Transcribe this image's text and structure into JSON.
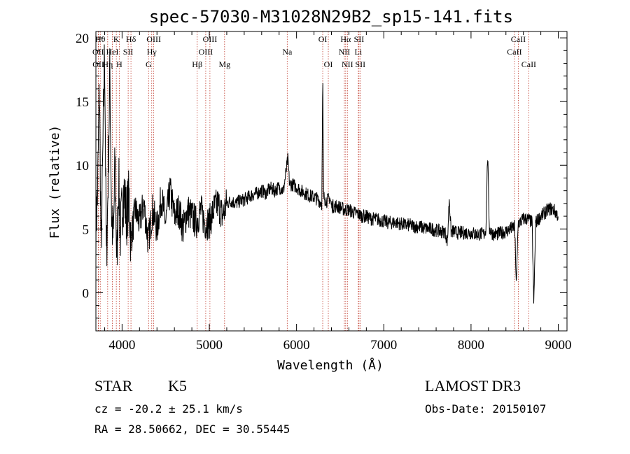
{
  "chart_data": {
    "type": "line",
    "title": "spec-57030-M31028N29B2_sp15-141.fits",
    "xlabel": "Wavelength (Å)",
    "ylabel": "Flux (relative)",
    "xlim": [
      3700,
      9100
    ],
    "ylim": [
      -3,
      20.5
    ],
    "xticks": [
      4000,
      5000,
      6000,
      7000,
      8000,
      9000
    ],
    "yticks": [
      0,
      5,
      10,
      15,
      20
    ],
    "colors": {
      "spectrum": "#000000",
      "lines": "#c0392b"
    },
    "spectral_lines": [
      {
        "label": "Hθ",
        "x": 3750,
        "row": 0
      },
      {
        "label": "OII",
        "x": 3727,
        "row": 1
      },
      {
        "label": "OII",
        "x": 3729,
        "row": 2
      },
      {
        "label": "Hη",
        "x": 3835,
        "row": 2
      },
      {
        "label": "HeI",
        "x": 3889,
        "row": 1
      },
      {
        "label": "K",
        "x": 3934,
        "row": 0
      },
      {
        "label": "H",
        "x": 3968,
        "row": 2
      },
      {
        "label": "SII",
        "x": 4070,
        "row": 1
      },
      {
        "label": "Hδ",
        "x": 4102,
        "row": 0
      },
      {
        "label": "G",
        "x": 4304,
        "row": 2
      },
      {
        "label": "Hγ",
        "x": 4340,
        "row": 1
      },
      {
        "label": "OIII",
        "x": 4363,
        "row": 0
      },
      {
        "label": "Hβ",
        "x": 4861,
        "row": 2
      },
      {
        "label": "OIII",
        "x": 4959,
        "row": 1
      },
      {
        "label": "OIII",
        "x": 5007,
        "row": 0
      },
      {
        "label": "Mg",
        "x": 5175,
        "row": 2
      },
      {
        "label": "Na",
        "x": 5893,
        "row": 1
      },
      {
        "label": "OI",
        "x": 6300,
        "row": 0
      },
      {
        "label": "OI",
        "x": 6364,
        "row": 2
      },
      {
        "label": "NII",
        "x": 6548,
        "row": 1
      },
      {
        "label": "Hα",
        "x": 6563,
        "row": 0
      },
      {
        "label": "NII",
        "x": 6583,
        "row": 2
      },
      {
        "label": "Li",
        "x": 6708,
        "row": 1
      },
      {
        "label": "SII",
        "x": 6716,
        "row": 0
      },
      {
        "label": "SII",
        "x": 6731,
        "row": 2
      },
      {
        "label": "CaII",
        "x": 8498,
        "row": 1
      },
      {
        "label": "CaII",
        "x": 8542,
        "row": 0
      },
      {
        "label": "CaII",
        "x": 8662,
        "row": 2
      }
    ],
    "spectrum_anchors": [
      [
        3700,
        5.0
      ],
      [
        3720,
        8.0
      ],
      [
        3740,
        16.5
      ],
      [
        3760,
        3.0
      ],
      [
        3780,
        11.0
      ],
      [
        3800,
        19.5
      ],
      [
        3820,
        2.5
      ],
      [
        3840,
        8.5
      ],
      [
        3860,
        17.5
      ],
      [
        3880,
        6.0
      ],
      [
        3900,
        4.0
      ],
      [
        3920,
        10.5
      ],
      [
        3940,
        2.0
      ],
      [
        3960,
        9.0
      ],
      [
        3980,
        4.5
      ],
      [
        4000,
        6.5
      ],
      [
        4020,
        8.0
      ],
      [
        4050,
        6.0
      ],
      [
        4080,
        7.5
      ],
      [
        4100,
        4.0
      ],
      [
        4150,
        6.5
      ],
      [
        4200,
        5.5
      ],
      [
        4250,
        7.0
      ],
      [
        4300,
        4.0
      ],
      [
        4350,
        6.5
      ],
      [
        4400,
        5.0
      ],
      [
        4450,
        7.5
      ],
      [
        4500,
        5.5
      ],
      [
        4550,
        8.0
      ],
      [
        4600,
        6.0
      ],
      [
        4650,
        6.5
      ],
      [
        4700,
        5.0
      ],
      [
        4750,
        6.5
      ],
      [
        4800,
        6.0
      ],
      [
        4850,
        5.5
      ],
      [
        4900,
        6.5
      ],
      [
        4950,
        5.5
      ],
      [
        5000,
        5.5
      ],
      [
        5050,
        6.5
      ],
      [
        5100,
        7.0
      ],
      [
        5150,
        6.0
      ],
      [
        5200,
        7.0
      ],
      [
        5250,
        7.2
      ],
      [
        5300,
        7.0
      ],
      [
        5350,
        7.2
      ],
      [
        5400,
        7.3
      ],
      [
        5450,
        7.5
      ],
      [
        5500,
        7.7
      ],
      [
        5550,
        7.8
      ],
      [
        5600,
        8.0
      ],
      [
        5650,
        7.8
      ],
      [
        5700,
        8.2
      ],
      [
        5750,
        8.0
      ],
      [
        5800,
        8.3
      ],
      [
        5850,
        8.0
      ],
      [
        5880,
        9.5
      ],
      [
        5900,
        10.5
      ],
      [
        5920,
        8.5
      ],
      [
        5950,
        8.5
      ],
      [
        6000,
        8.3
      ],
      [
        6050,
        8.0
      ],
      [
        6100,
        7.8
      ],
      [
        6150,
        7.6
      ],
      [
        6200,
        7.5
      ],
      [
        6250,
        7.3
      ],
      [
        6290,
        7.0
      ],
      [
        6300,
        17.0
      ],
      [
        6310,
        7.5
      ],
      [
        6350,
        7.2
      ],
      [
        6380,
        7.5
      ],
      [
        6400,
        6.8
      ],
      [
        6450,
        6.8
      ],
      [
        6500,
        6.7
      ],
      [
        6550,
        6.5
      ],
      [
        6600,
        6.5
      ],
      [
        6650,
        6.3
      ],
      [
        6700,
        6.2
      ],
      [
        6750,
        6.0
      ],
      [
        6800,
        6.0
      ],
      [
        6850,
        5.8
      ],
      [
        6900,
        5.8
      ],
      [
        6950,
        5.7
      ],
      [
        7000,
        5.6
      ],
      [
        7050,
        5.5
      ],
      [
        7100,
        5.5
      ],
      [
        7150,
        5.5
      ],
      [
        7200,
        5.4
      ],
      [
        7250,
        5.3
      ],
      [
        7300,
        5.3
      ],
      [
        7350,
        5.2
      ],
      [
        7400,
        5.2
      ],
      [
        7450,
        5.1
      ],
      [
        7500,
        5.0
      ],
      [
        7550,
        5.0
      ],
      [
        7600,
        4.9
      ],
      [
        7650,
        4.8
      ],
      [
        7700,
        4.8
      ],
      [
        7730,
        4.0
      ],
      [
        7750,
        7.5
      ],
      [
        7770,
        4.8
      ],
      [
        7800,
        4.8
      ],
      [
        7850,
        4.7
      ],
      [
        7900,
        4.7
      ],
      [
        7950,
        4.7
      ],
      [
        8000,
        4.7
      ],
      [
        8050,
        4.6
      ],
      [
        8100,
        4.6
      ],
      [
        8150,
        4.6
      ],
      [
        8170,
        5.0
      ],
      [
        8190,
        11.0
      ],
      [
        8210,
        5.0
      ],
      [
        8250,
        4.6
      ],
      [
        8300,
        4.6
      ],
      [
        8350,
        4.7
      ],
      [
        8400,
        4.8
      ],
      [
        8450,
        5.0
      ],
      [
        8500,
        5.2
      ],
      [
        8520,
        0.5
      ],
      [
        8540,
        5.5
      ],
      [
        8560,
        5.5
      ],
      [
        8600,
        5.8
      ],
      [
        8650,
        5.8
      ],
      [
        8700,
        5.5
      ],
      [
        8720,
        -1.0
      ],
      [
        8740,
        5.5
      ],
      [
        8800,
        6.0
      ],
      [
        8850,
        6.3
      ],
      [
        8900,
        6.6
      ],
      [
        8950,
        6.5
      ],
      [
        9000,
        6.0
      ]
    ]
  },
  "info": {
    "class": "STAR",
    "subclass": "K5",
    "survey": "LAMOST DR3",
    "cz": "cz = -20.2 ± 25.1 km/s",
    "obs_date": "Obs-Date: 20150107",
    "radec": "RA =  28.50662, DEC =  30.55445"
  }
}
